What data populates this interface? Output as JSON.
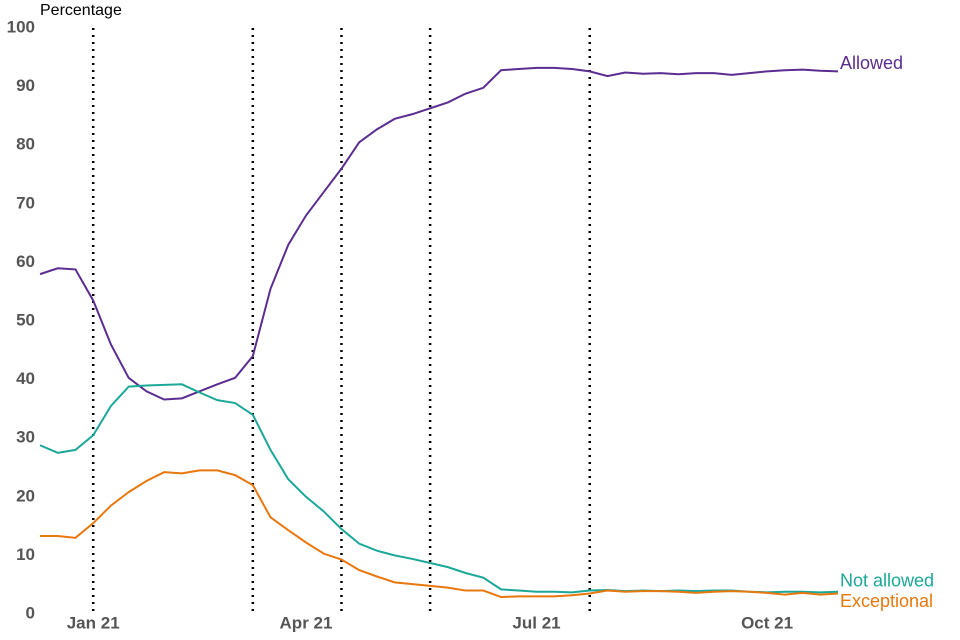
{
  "chart_data": {
    "type": "line",
    "y_label": "Percentage",
    "categories": [
      null,
      null,
      null,
      "Jan 21",
      null,
      null,
      null,
      null,
      null,
      null,
      null,
      null,
      null,
      null,
      null,
      "Apr 21",
      null,
      null,
      null,
      null,
      null,
      null,
      null,
      null,
      null,
      null,
      null,
      null,
      "Jul 21",
      null,
      null,
      null,
      null,
      null,
      null,
      null,
      null,
      null,
      null,
      null,
      null,
      "Oct 21",
      null,
      null,
      null,
      null
    ],
    "series": [
      {
        "name": "Allowed",
        "color": "#5b2d90",
        "values": [
          58,
          59,
          58.8,
          53.5,
          46,
          40.3,
          38,
          36.6,
          36.8,
          38,
          39.2,
          40.3,
          44,
          55.5,
          63,
          68,
          72,
          76,
          80.5,
          82.7,
          84.5,
          85.3,
          86.3,
          87.3,
          88.8,
          89.8,
          92.8,
          93,
          93.2,
          93.2,
          93,
          92.6,
          91.8,
          92.4,
          92.2,
          92.3,
          92.1,
          92.3,
          92.3,
          92,
          92.3,
          92.6,
          92.8,
          92.9,
          92.7,
          92.6
        ]
      },
      {
        "name": "Not allowed",
        "color": "#1ba898",
        "values": [
          28.8,
          27.5,
          28,
          30.5,
          35.5,
          38.8,
          39,
          39.1,
          39.2,
          37.8,
          36.5,
          36,
          34,
          28,
          23,
          20,
          17.5,
          14.5,
          12,
          10.8,
          10,
          9.4,
          8.7,
          8,
          7,
          6.2,
          4.2,
          4,
          3.8,
          3.8,
          3.7,
          4,
          4.1,
          3.9,
          4,
          3.9,
          4,
          3.9,
          4,
          4,
          3.8,
          3.7,
          3.8,
          3.8,
          3.7,
          3.8
        ]
      },
      {
        "name": "Exceptional",
        "color": "#e8780e",
        "values": [
          13.3,
          13.3,
          13,
          15.5,
          18.5,
          20.8,
          22.7,
          24.2,
          24,
          24.5,
          24.5,
          23.7,
          22,
          16.5,
          14.3,
          12.2,
          10.3,
          9.3,
          7.5,
          6.4,
          5.4,
          5.1,
          4.8,
          4.5,
          4,
          4,
          2.9,
          3,
          3,
          3,
          3.2,
          3.5,
          4,
          3.8,
          3.9,
          3.9,
          3.8,
          3.6,
          3.8,
          3.9,
          3.8,
          3.6,
          3.3,
          3.6,
          3.3,
          3.5
        ]
      }
    ],
    "ylim": [
      0,
      100
    ],
    "yticks": [
      0,
      10,
      20,
      30,
      40,
      50,
      60,
      70,
      80,
      90,
      100
    ],
    "grid": false
  }
}
